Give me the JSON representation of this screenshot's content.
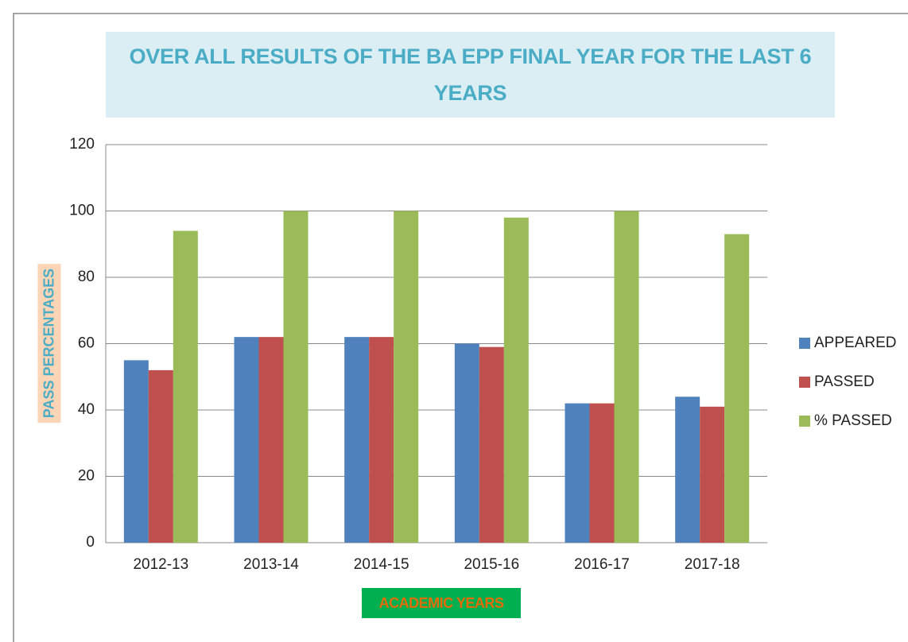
{
  "chart_data": {
    "type": "bar",
    "title": "OVER ALL RESULTS OF THE BA EPP FINAL YEAR FOR THE LAST 6 YEARS",
    "x_label": "ACADEMIC YEARS",
    "y_label": "PASS PERCENTAGES",
    "categories": [
      "2012-13",
      "2013-14",
      "2014-15",
      "2015-16",
      "2016-17",
      "2017-18"
    ],
    "series": [
      {
        "name": "APPEARED",
        "color": "#4f81bd",
        "values": [
          55,
          62,
          62,
          60,
          42,
          44
        ]
      },
      {
        "name": "PASSED",
        "color": "#c0504d",
        "values": [
          52,
          62,
          62,
          59,
          42,
          41
        ]
      },
      {
        "name": "% PASSED",
        "color": "#9bbb59",
        "values": [
          94,
          100,
          100,
          98,
          100,
          93
        ]
      }
    ],
    "ylim": [
      0,
      120
    ],
    "yticks": [
      0,
      20,
      40,
      60,
      80,
      100,
      120
    ],
    "grid": true,
    "legend": "right"
  }
}
